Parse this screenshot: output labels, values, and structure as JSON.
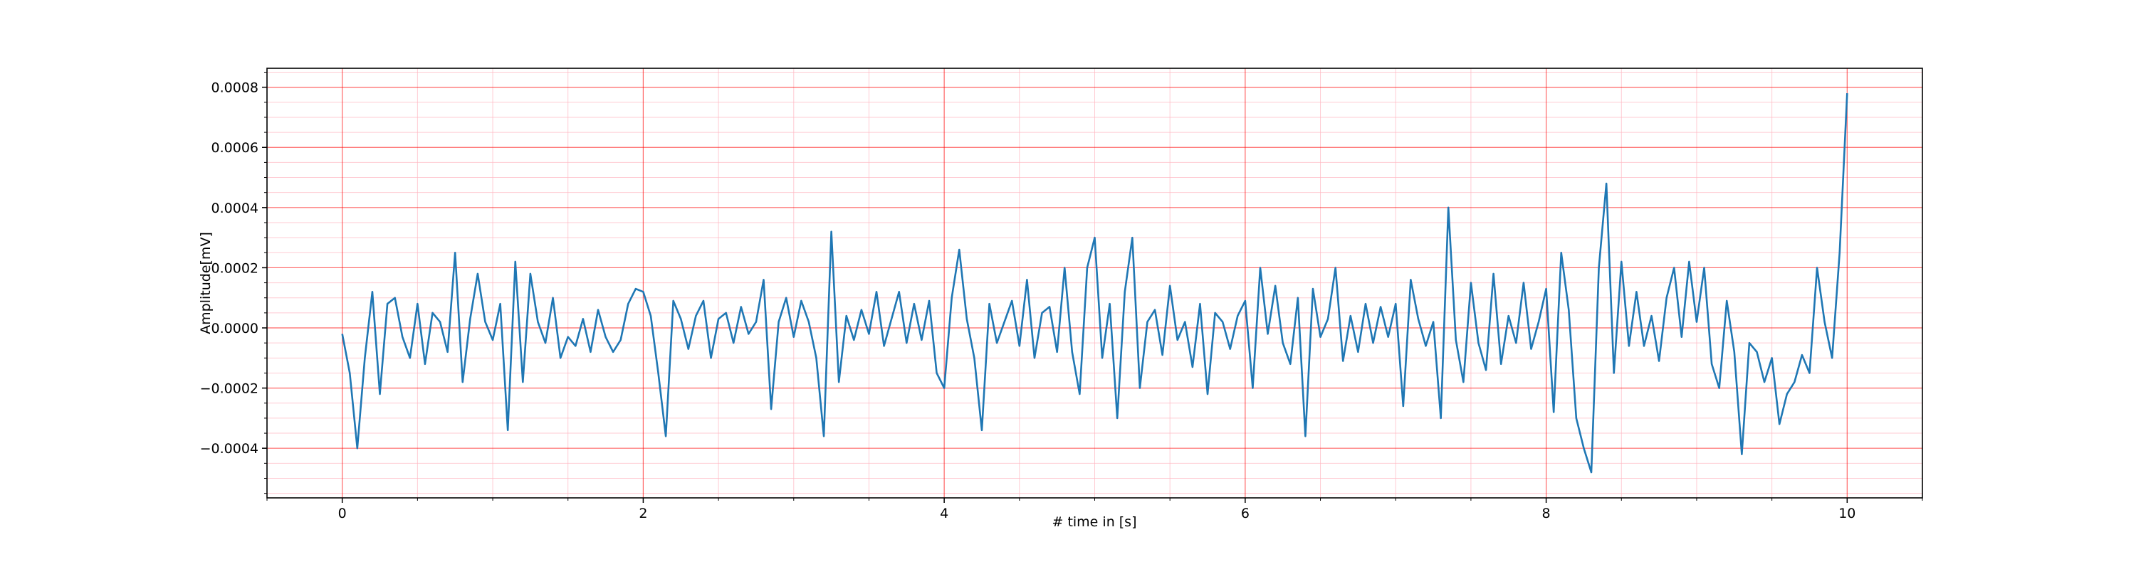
{
  "chart_data": {
    "type": "line",
    "xlabel": "# time in [s]",
    "ylabel": "Amplitude[mV]",
    "color": "#1f77b4",
    "grid": true,
    "major_grid_color": "#ff0000",
    "minor_grid_color": "#ffb6c1",
    "xlim": [
      -0.5,
      10.5
    ],
    "ylim": [
      -0.000565,
      0.000863
    ],
    "xticks": [
      0,
      2,
      4,
      6,
      8,
      10
    ],
    "yticks": [
      {
        "value": -0.0004,
        "label": "−0.0004"
      },
      {
        "value": -0.0002,
        "label": "−0.0002"
      },
      {
        "value": 0,
        "label": "0.0000"
      },
      {
        "value": 0.0002,
        "label": "0.0002"
      },
      {
        "value": 0.0004,
        "label": "0.0004"
      },
      {
        "value": 0.0006,
        "label": "0.0006"
      },
      {
        "value": 0.0008,
        "label": "0.0008"
      }
    ],
    "xminorticks": [
      -0.5,
      0.5,
      1,
      1.5,
      2.5,
      3,
      3.5,
      4.5,
      5,
      5.5,
      6.5,
      7,
      7.5,
      8.5,
      9,
      9.5,
      10.5
    ],
    "yminorticks": [
      -0.00055,
      -0.0005,
      -0.00045,
      -0.00035,
      -0.0003,
      -0.00025,
      -0.00015,
      -0.0001,
      -5e-05,
      5e-05,
      0.0001,
      0.00015,
      0.00025,
      0.0003,
      0.00035,
      0.00045,
      0.0005,
      0.00055,
      0.00065,
      0.0007,
      0.00075,
      0.00085
    ],
    "x": [
      0,
      0.05,
      0.1,
      0.15,
      0.2,
      0.25,
      0.3,
      0.35,
      0.4,
      0.45,
      0.5,
      0.55,
      0.6,
      0.65,
      0.7,
      0.75,
      0.8,
      0.85,
      0.9,
      0.95,
      1,
      1.05,
      1.1,
      1.15,
      1.2,
      1.25,
      1.3,
      1.35,
      1.4,
      1.45,
      1.5,
      1.55,
      1.6,
      1.65,
      1.7,
      1.75,
      1.8,
      1.85,
      1.9,
      1.95,
      2,
      2.05,
      2.1,
      2.15,
      2.2,
      2.25,
      2.3,
      2.35,
      2.4,
      2.45,
      2.5,
      2.55,
      2.6,
      2.65,
      2.7,
      2.75,
      2.8,
      2.85,
      2.9,
      2.95,
      3,
      3.05,
      3.1,
      3.15,
      3.2,
      3.25,
      3.3,
      3.35,
      3.4,
      3.45,
      3.5,
      3.55,
      3.6,
      3.65,
      3.7,
      3.75,
      3.8,
      3.85,
      3.9,
      3.95,
      4,
      4.05,
      4.1,
      4.15,
      4.2,
      4.25,
      4.3,
      4.35,
      4.4,
      4.45,
      4.5,
      4.55,
      4.6,
      4.65,
      4.7,
      4.75,
      4.8,
      4.85,
      4.9,
      4.95,
      5,
      5.05,
      5.1,
      5.15,
      5.2,
      5.25,
      5.3,
      5.35,
      5.4,
      5.45,
      5.5,
      5.55,
      5.6,
      5.65,
      5.7,
      5.75,
      5.8,
      5.85,
      5.9,
      5.95,
      6,
      6.05,
      6.1,
      6.15,
      6.2,
      6.25,
      6.3,
      6.35,
      6.4,
      6.45,
      6.5,
      6.55,
      6.6,
      6.65,
      6.7,
      6.75,
      6.8,
      6.85,
      6.9,
      6.95,
      7,
      7.05,
      7.1,
      7.15,
      7.2,
      7.25,
      7.3,
      7.35,
      7.4,
      7.45,
      7.5,
      7.55,
      7.6,
      7.65,
      7.7,
      7.75,
      7.8,
      7.85,
      7.9,
      7.95,
      8,
      8.05,
      8.1,
      8.15,
      8.2,
      8.25,
      8.3,
      8.35,
      8.4,
      8.45,
      8.5,
      8.55,
      8.6,
      8.65,
      8.7,
      8.75,
      8.8,
      8.85,
      8.9,
      8.95,
      9,
      9.05,
      9.1,
      9.15,
      9.2,
      9.25,
      9.3,
      9.35,
      9.4,
      9.45,
      9.5,
      9.55,
      9.6,
      9.65,
      9.7,
      9.75,
      9.8,
      9.85,
      9.9,
      9.95,
      10
    ],
    "values": [
      -2e-05,
      -0.00015,
      -0.0004,
      -0.0001,
      0.00012,
      -0.00022,
      8e-05,
      0.0001,
      -3e-05,
      -0.0001,
      8e-05,
      -0.00012,
      5e-05,
      2e-05,
      -8e-05,
      0.00025,
      -0.00018,
      3e-05,
      0.00018,
      2e-05,
      -4e-05,
      8e-05,
      -0.00034,
      0.00022,
      -0.00018,
      0.00018,
      2e-05,
      -5e-05,
      0.0001,
      -0.0001,
      -3e-05,
      -6e-05,
      3e-05,
      -8e-05,
      6e-05,
      -3e-05,
      -8e-05,
      -4e-05,
      8e-05,
      0.00013,
      0.00012,
      4e-05,
      -0.00015,
      -0.00036,
      9e-05,
      3e-05,
      -7e-05,
      4e-05,
      9e-05,
      -0.0001,
      3e-05,
      5e-05,
      -5e-05,
      7e-05,
      -2e-05,
      2e-05,
      0.00016,
      -0.00027,
      2e-05,
      0.0001,
      -3e-05,
      9e-05,
      2e-05,
      -0.0001,
      -0.00036,
      0.00032,
      -0.00018,
      4e-05,
      -4e-05,
      6e-05,
      -2e-05,
      0.00012,
      -6e-05,
      3e-05,
      0.00012,
      -5e-05,
      8e-05,
      -4e-05,
      9e-05,
      -0.00015,
      -0.0002,
      0.0001,
      0.00026,
      3e-05,
      -0.0001,
      -0.00034,
      8e-05,
      -5e-05,
      2e-05,
      9e-05,
      -6e-05,
      0.00016,
      -0.0001,
      5e-05,
      7e-05,
      -8e-05,
      0.0002,
      -8e-05,
      -0.00022,
      0.0002,
      0.0003,
      -0.0001,
      8e-05,
      -0.0003,
      0.00012,
      0.0003,
      -0.0002,
      2e-05,
      6e-05,
      -9e-05,
      0.00014,
      -4e-05,
      2e-05,
      -0.00013,
      8e-05,
      -0.00022,
      5e-05,
      2e-05,
      -7e-05,
      4e-05,
      9e-05,
      -0.0002,
      0.0002,
      -2e-05,
      0.00014,
      -5e-05,
      -0.00012,
      0.0001,
      -0.00036,
      0.00013,
      -3e-05,
      3e-05,
      0.0002,
      -0.00011,
      4e-05,
      -8e-05,
      8e-05,
      -5e-05,
      7e-05,
      -3e-05,
      8e-05,
      -0.00026,
      0.00016,
      3e-05,
      -6e-05,
      2e-05,
      -0.0003,
      0.0004,
      -4e-05,
      -0.00018,
      0.00015,
      -5e-05,
      -0.00014,
      0.00018,
      -0.00012,
      4e-05,
      -5e-05,
      0.00015,
      -7e-05,
      2e-05,
      0.00013,
      -0.00028,
      0.00025,
      6e-05,
      -0.0003,
      -0.0004,
      -0.00048,
      0.0002,
      0.00048,
      -0.00015,
      0.00022,
      -6e-05,
      0.00012,
      -6e-05,
      4e-05,
      -0.00011,
      0.0001,
      0.0002,
      -3e-05,
      0.00022,
      2e-05,
      0.0002,
      -0.00012,
      -0.0002,
      9e-05,
      -8e-05,
      -0.00042,
      -5e-05,
      -8e-05,
      -0.00018,
      -0.0001,
      -0.00032,
      -0.00022,
      -0.00018,
      -9e-05,
      -0.00015,
      0.0002,
      2e-05,
      -0.0001,
      0.00025,
      0.00078
    ]
  }
}
